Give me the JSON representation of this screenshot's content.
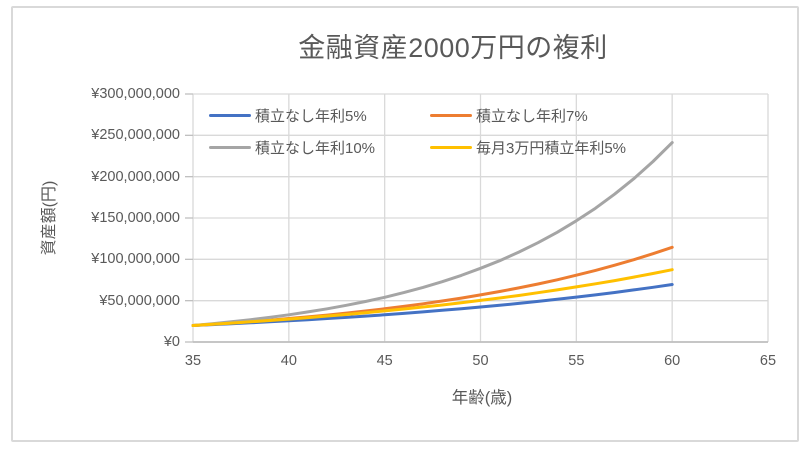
{
  "chart_data": {
    "type": "line",
    "title": "金融資産2000万円の複利",
    "xlabel": "年齢(歳)",
    "ylabel": "資産額(円)",
    "xlim": [
      35,
      65
    ],
    "ylim": [
      0,
      300000000
    ],
    "x_ticks": [
      35,
      40,
      45,
      50,
      55,
      60,
      65
    ],
    "y_ticks": [
      {
        "value": 0,
        "label": "¥0"
      },
      {
        "value": 50000000,
        "label": "¥50,000,000"
      },
      {
        "value": 100000000,
        "label": "¥100,000,000"
      },
      {
        "value": 150000000,
        "label": "¥150,000,000"
      },
      {
        "value": 200000000,
        "label": "¥200,000,000"
      },
      {
        "value": 250000000,
        "label": "¥250,000,000"
      },
      {
        "value": 300000000,
        "label": "¥300,000,000"
      }
    ],
    "grid": true,
    "legend_position": "top-inside",
    "x": [
      35,
      36,
      37,
      38,
      39,
      40,
      41,
      42,
      43,
      44,
      45,
      46,
      47,
      48,
      49,
      50,
      51,
      52,
      53,
      54,
      55,
      56,
      57,
      58,
      59,
      60
    ],
    "series": [
      {
        "id": "no-contrib-5pct",
        "name": "積立なし年利5%",
        "color": "#4472C4",
        "values": [
          20000000,
          21000000,
          22100000,
          23200000,
          24400000,
          25700000,
          27000000,
          28400000,
          29800000,
          31300000,
          32900000,
          34600000,
          36400000,
          38300000,
          40200000,
          42300000,
          44400000,
          46700000,
          49100000,
          51600000,
          54300000,
          57000000,
          59900000,
          63000000,
          66200000,
          69600000
        ]
      },
      {
        "id": "no-contrib-7pct",
        "name": "積立なし年利7%",
        "color": "#ED7D31",
        "values": [
          20000000,
          21400000,
          23000000,
          24700000,
          26400000,
          28400000,
          30400000,
          32600000,
          35000000,
          37500000,
          40200000,
          43100000,
          46200000,
          49600000,
          53100000,
          57000000,
          61100000,
          65500000,
          70200000,
          75300000,
          80800000,
          86600000,
          92900000,
          99600000,
          106800000,
          114500000
        ]
      },
      {
        "id": "no-contrib-10pct",
        "name": "積立なし年利10%",
        "color": "#A5A5A5",
        "values": [
          20000000,
          22100000,
          24400000,
          27000000,
          29800000,
          32900000,
          36400000,
          40200000,
          44400000,
          49000000,
          54100000,
          59800000,
          66100000,
          73000000,
          80600000,
          89100000,
          98400000,
          108700000,
          120100000,
          132700000,
          146600000,
          161900000,
          178900000,
          197600000,
          218300000,
          241200000
        ]
      },
      {
        "id": "monthly-30k-5pct",
        "name": "毎月3万円積立年利5%",
        "color": "#FFC000",
        "values": [
          20000000,
          21400000,
          22900000,
          24400000,
          26000000,
          27700000,
          29500000,
          31400000,
          33300000,
          35400000,
          37600000,
          39900000,
          42300000,
          44800000,
          47500000,
          50300000,
          53200000,
          56300000,
          59600000,
          63000000,
          66600000,
          70400000,
          74300000,
          78500000,
          82900000,
          87500000
        ]
      }
    ],
    "colors": {
      "gridline": "#D9D9D9",
      "axis_line": "#BFBFBF",
      "text": "#595959",
      "frame_border": "#D9D9D9"
    }
  }
}
